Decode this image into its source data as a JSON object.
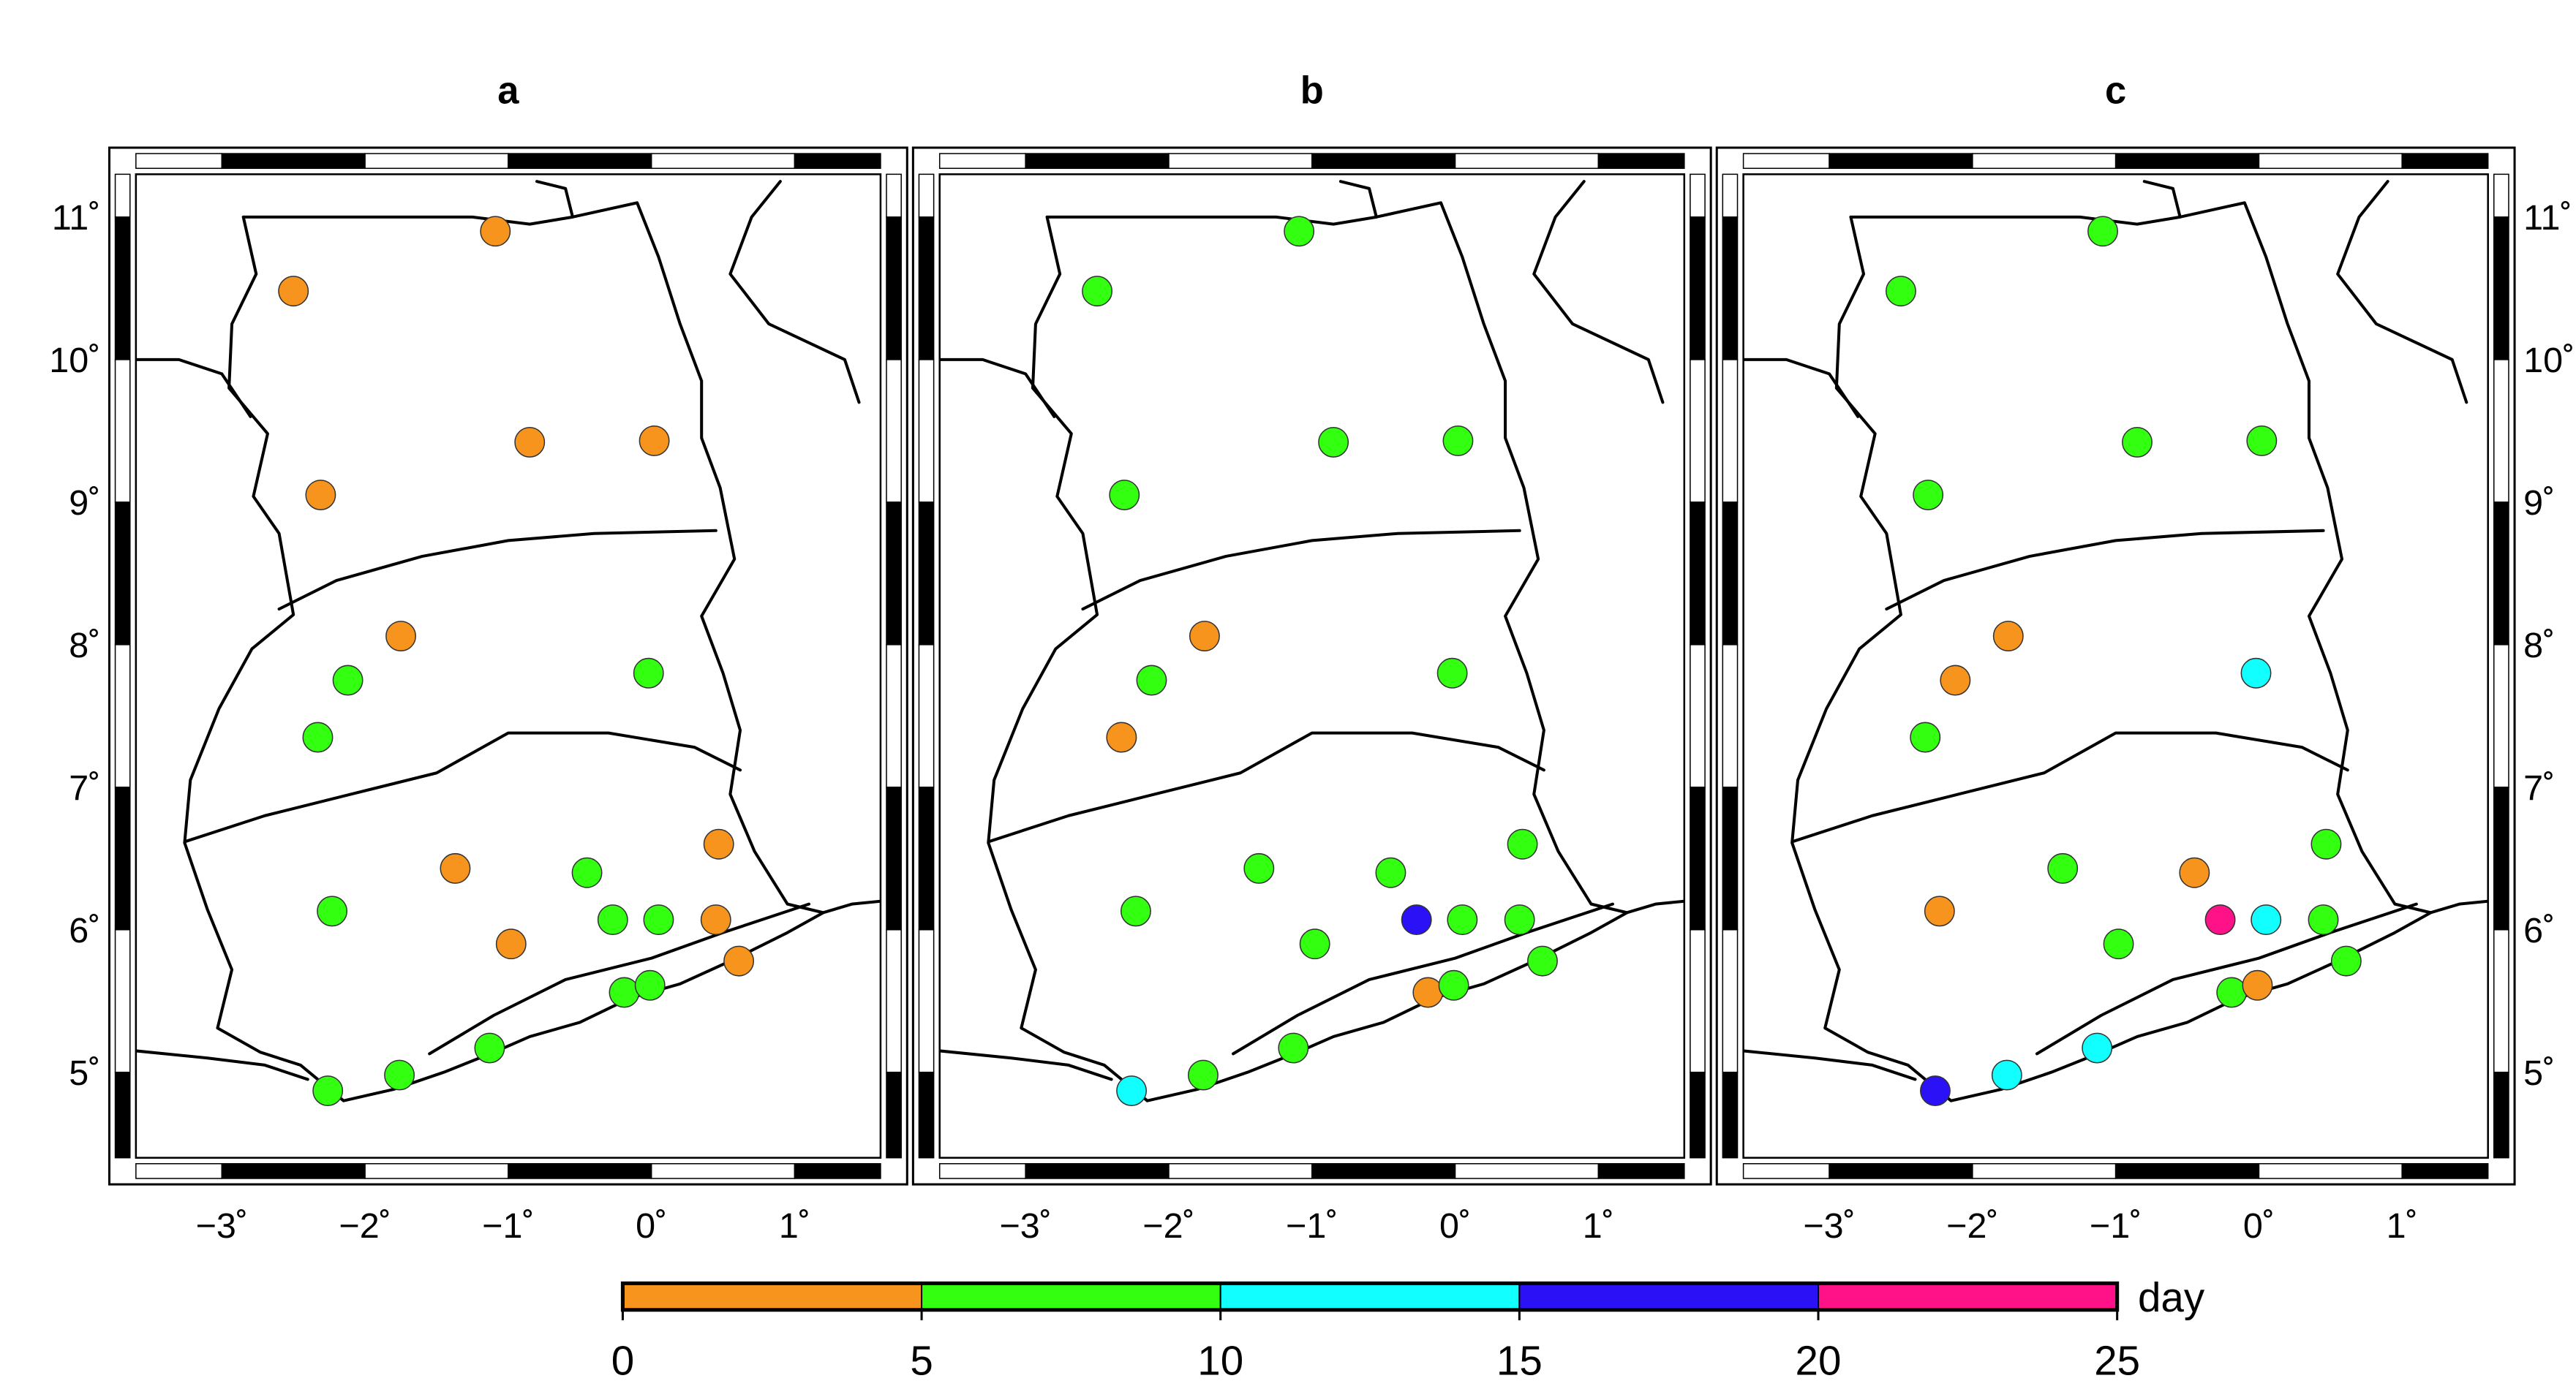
{
  "panels": [
    {
      "label": "a",
      "stations": [
        {
          "lon": -1.09,
          "lat": 10.9,
          "class": 0
        },
        {
          "lon": -2.5,
          "lat": 10.48,
          "class": 0
        },
        {
          "lon": -0.85,
          "lat": 9.42,
          "class": 0
        },
        {
          "lon": 0.02,
          "lat": 9.43,
          "class": 0
        },
        {
          "lon": -2.31,
          "lat": 9.05,
          "class": 0
        },
        {
          "lon": -1.75,
          "lat": 8.06,
          "class": 0
        },
        {
          "lon": -2.12,
          "lat": 7.75,
          "class": 1
        },
        {
          "lon": -0.02,
          "lat": 7.8,
          "class": 1
        },
        {
          "lon": -2.33,
          "lat": 7.35,
          "class": 1
        },
        {
          "lon": -1.37,
          "lat": 6.43,
          "class": 0
        },
        {
          "lon": -0.45,
          "lat": 6.4,
          "class": 1
        },
        {
          "lon": 0.47,
          "lat": 6.6,
          "class": 0
        },
        {
          "lon": -2.23,
          "lat": 6.13,
          "class": 1
        },
        {
          "lon": -0.27,
          "lat": 6.07,
          "class": 1
        },
        {
          "lon": 0.05,
          "lat": 6.07,
          "class": 1
        },
        {
          "lon": 0.45,
          "lat": 6.07,
          "class": 0
        },
        {
          "lon": -0.98,
          "lat": 5.9,
          "class": 0
        },
        {
          "lon": 0.61,
          "lat": 5.78,
          "class": 0
        },
        {
          "lon": -0.19,
          "lat": 5.56,
          "class": 1
        },
        {
          "lon": -0.01,
          "lat": 5.61,
          "class": 1
        },
        {
          "lon": -1.13,
          "lat": 5.17,
          "class": 1
        },
        {
          "lon": -1.76,
          "lat": 4.98,
          "class": 1
        },
        {
          "lon": -2.26,
          "lat": 4.87,
          "class": 1
        }
      ]
    },
    {
      "label": "b",
      "stations": [
        {
          "lon": -1.09,
          "lat": 10.9,
          "class": 1
        },
        {
          "lon": -2.5,
          "lat": 10.48,
          "class": 1
        },
        {
          "lon": -0.85,
          "lat": 9.42,
          "class": 1
        },
        {
          "lon": 0.02,
          "lat": 9.43,
          "class": 1
        },
        {
          "lon": -2.31,
          "lat": 9.05,
          "class": 1
        },
        {
          "lon": -1.75,
          "lat": 8.06,
          "class": 0
        },
        {
          "lon": -2.12,
          "lat": 7.75,
          "class": 1
        },
        {
          "lon": -0.02,
          "lat": 7.8,
          "class": 1
        },
        {
          "lon": -2.33,
          "lat": 7.35,
          "class": 0
        },
        {
          "lon": -1.37,
          "lat": 6.43,
          "class": 1
        },
        {
          "lon": -0.45,
          "lat": 6.4,
          "class": 1
        },
        {
          "lon": 0.47,
          "lat": 6.6,
          "class": 1
        },
        {
          "lon": -2.23,
          "lat": 6.13,
          "class": 1
        },
        {
          "lon": -0.27,
          "lat": 6.07,
          "class": 3
        },
        {
          "lon": 0.05,
          "lat": 6.07,
          "class": 1
        },
        {
          "lon": 0.45,
          "lat": 6.07,
          "class": 1
        },
        {
          "lon": -0.98,
          "lat": 5.9,
          "class": 1
        },
        {
          "lon": 0.61,
          "lat": 5.78,
          "class": 1
        },
        {
          "lon": -0.19,
          "lat": 5.56,
          "class": 0
        },
        {
          "lon": -0.01,
          "lat": 5.61,
          "class": 1
        },
        {
          "lon": -1.13,
          "lat": 5.17,
          "class": 1
        },
        {
          "lon": -1.76,
          "lat": 4.98,
          "class": 1
        },
        {
          "lon": -2.26,
          "lat": 4.87,
          "class": 2
        }
      ]
    },
    {
      "label": "c",
      "stations": [
        {
          "lon": -1.09,
          "lat": 10.9,
          "class": 1
        },
        {
          "lon": -2.5,
          "lat": 10.48,
          "class": 1
        },
        {
          "lon": -0.85,
          "lat": 9.42,
          "class": 1
        },
        {
          "lon": 0.02,
          "lat": 9.43,
          "class": 1
        },
        {
          "lon": -2.31,
          "lat": 9.05,
          "class": 1
        },
        {
          "lon": -1.75,
          "lat": 8.06,
          "class": 0
        },
        {
          "lon": -2.12,
          "lat": 7.75,
          "class": 0
        },
        {
          "lon": -0.02,
          "lat": 7.8,
          "class": 2
        },
        {
          "lon": -2.33,
          "lat": 7.35,
          "class": 1
        },
        {
          "lon": -1.37,
          "lat": 6.43,
          "class": 1
        },
        {
          "lon": -0.45,
          "lat": 6.4,
          "class": 0
        },
        {
          "lon": 0.47,
          "lat": 6.6,
          "class": 1
        },
        {
          "lon": -2.23,
          "lat": 6.13,
          "class": 0
        },
        {
          "lon": -0.27,
          "lat": 6.07,
          "class": 4
        },
        {
          "lon": 0.05,
          "lat": 6.07,
          "class": 2
        },
        {
          "lon": 0.45,
          "lat": 6.07,
          "class": 1
        },
        {
          "lon": -0.98,
          "lat": 5.9,
          "class": 1
        },
        {
          "lon": 0.61,
          "lat": 5.78,
          "class": 1
        },
        {
          "lon": -0.19,
          "lat": 5.56,
          "class": 1
        },
        {
          "lon": -0.01,
          "lat": 5.61,
          "class": 0
        },
        {
          "lon": -1.13,
          "lat": 5.17,
          "class": 2
        },
        {
          "lon": -1.76,
          "lat": 4.98,
          "class": 2
        },
        {
          "lon": -2.26,
          "lat": 4.87,
          "class": 3
        }
      ]
    }
  ],
  "map_extent": {
    "lon_min": -3.6,
    "lon_max": 1.6,
    "lat_min": 4.4,
    "lat_max": 11.3
  },
  "lon_ticks": [
    {
      "value": -3,
      "label": "−3˚"
    },
    {
      "value": -2,
      "label": "−2˚"
    },
    {
      "value": -1,
      "label": "−1˚"
    },
    {
      "value": 0,
      "label": "0˚"
    },
    {
      "value": 1,
      "label": "1˚"
    }
  ],
  "lat_ticks": [
    {
      "value": 11,
      "label": "11˚"
    },
    {
      "value": 10,
      "label": "10˚"
    },
    {
      "value": 9,
      "label": "9˚"
    },
    {
      "value": 8,
      "label": "8˚"
    },
    {
      "value": 7,
      "label": "7˚"
    },
    {
      "value": 6,
      "label": "6˚"
    },
    {
      "value": 5,
      "label": "5˚"
    }
  ],
  "colorbar": {
    "unit": "day",
    "bounds": [
      0,
      5,
      10,
      15,
      20,
      25
    ],
    "bound_labels": [
      "0",
      "5",
      "10",
      "15",
      "20",
      "25"
    ],
    "colors": [
      "#f7941d",
      "#33ff11",
      "#11ffff",
      "#2b11f5",
      "#ff1188"
    ]
  }
}
